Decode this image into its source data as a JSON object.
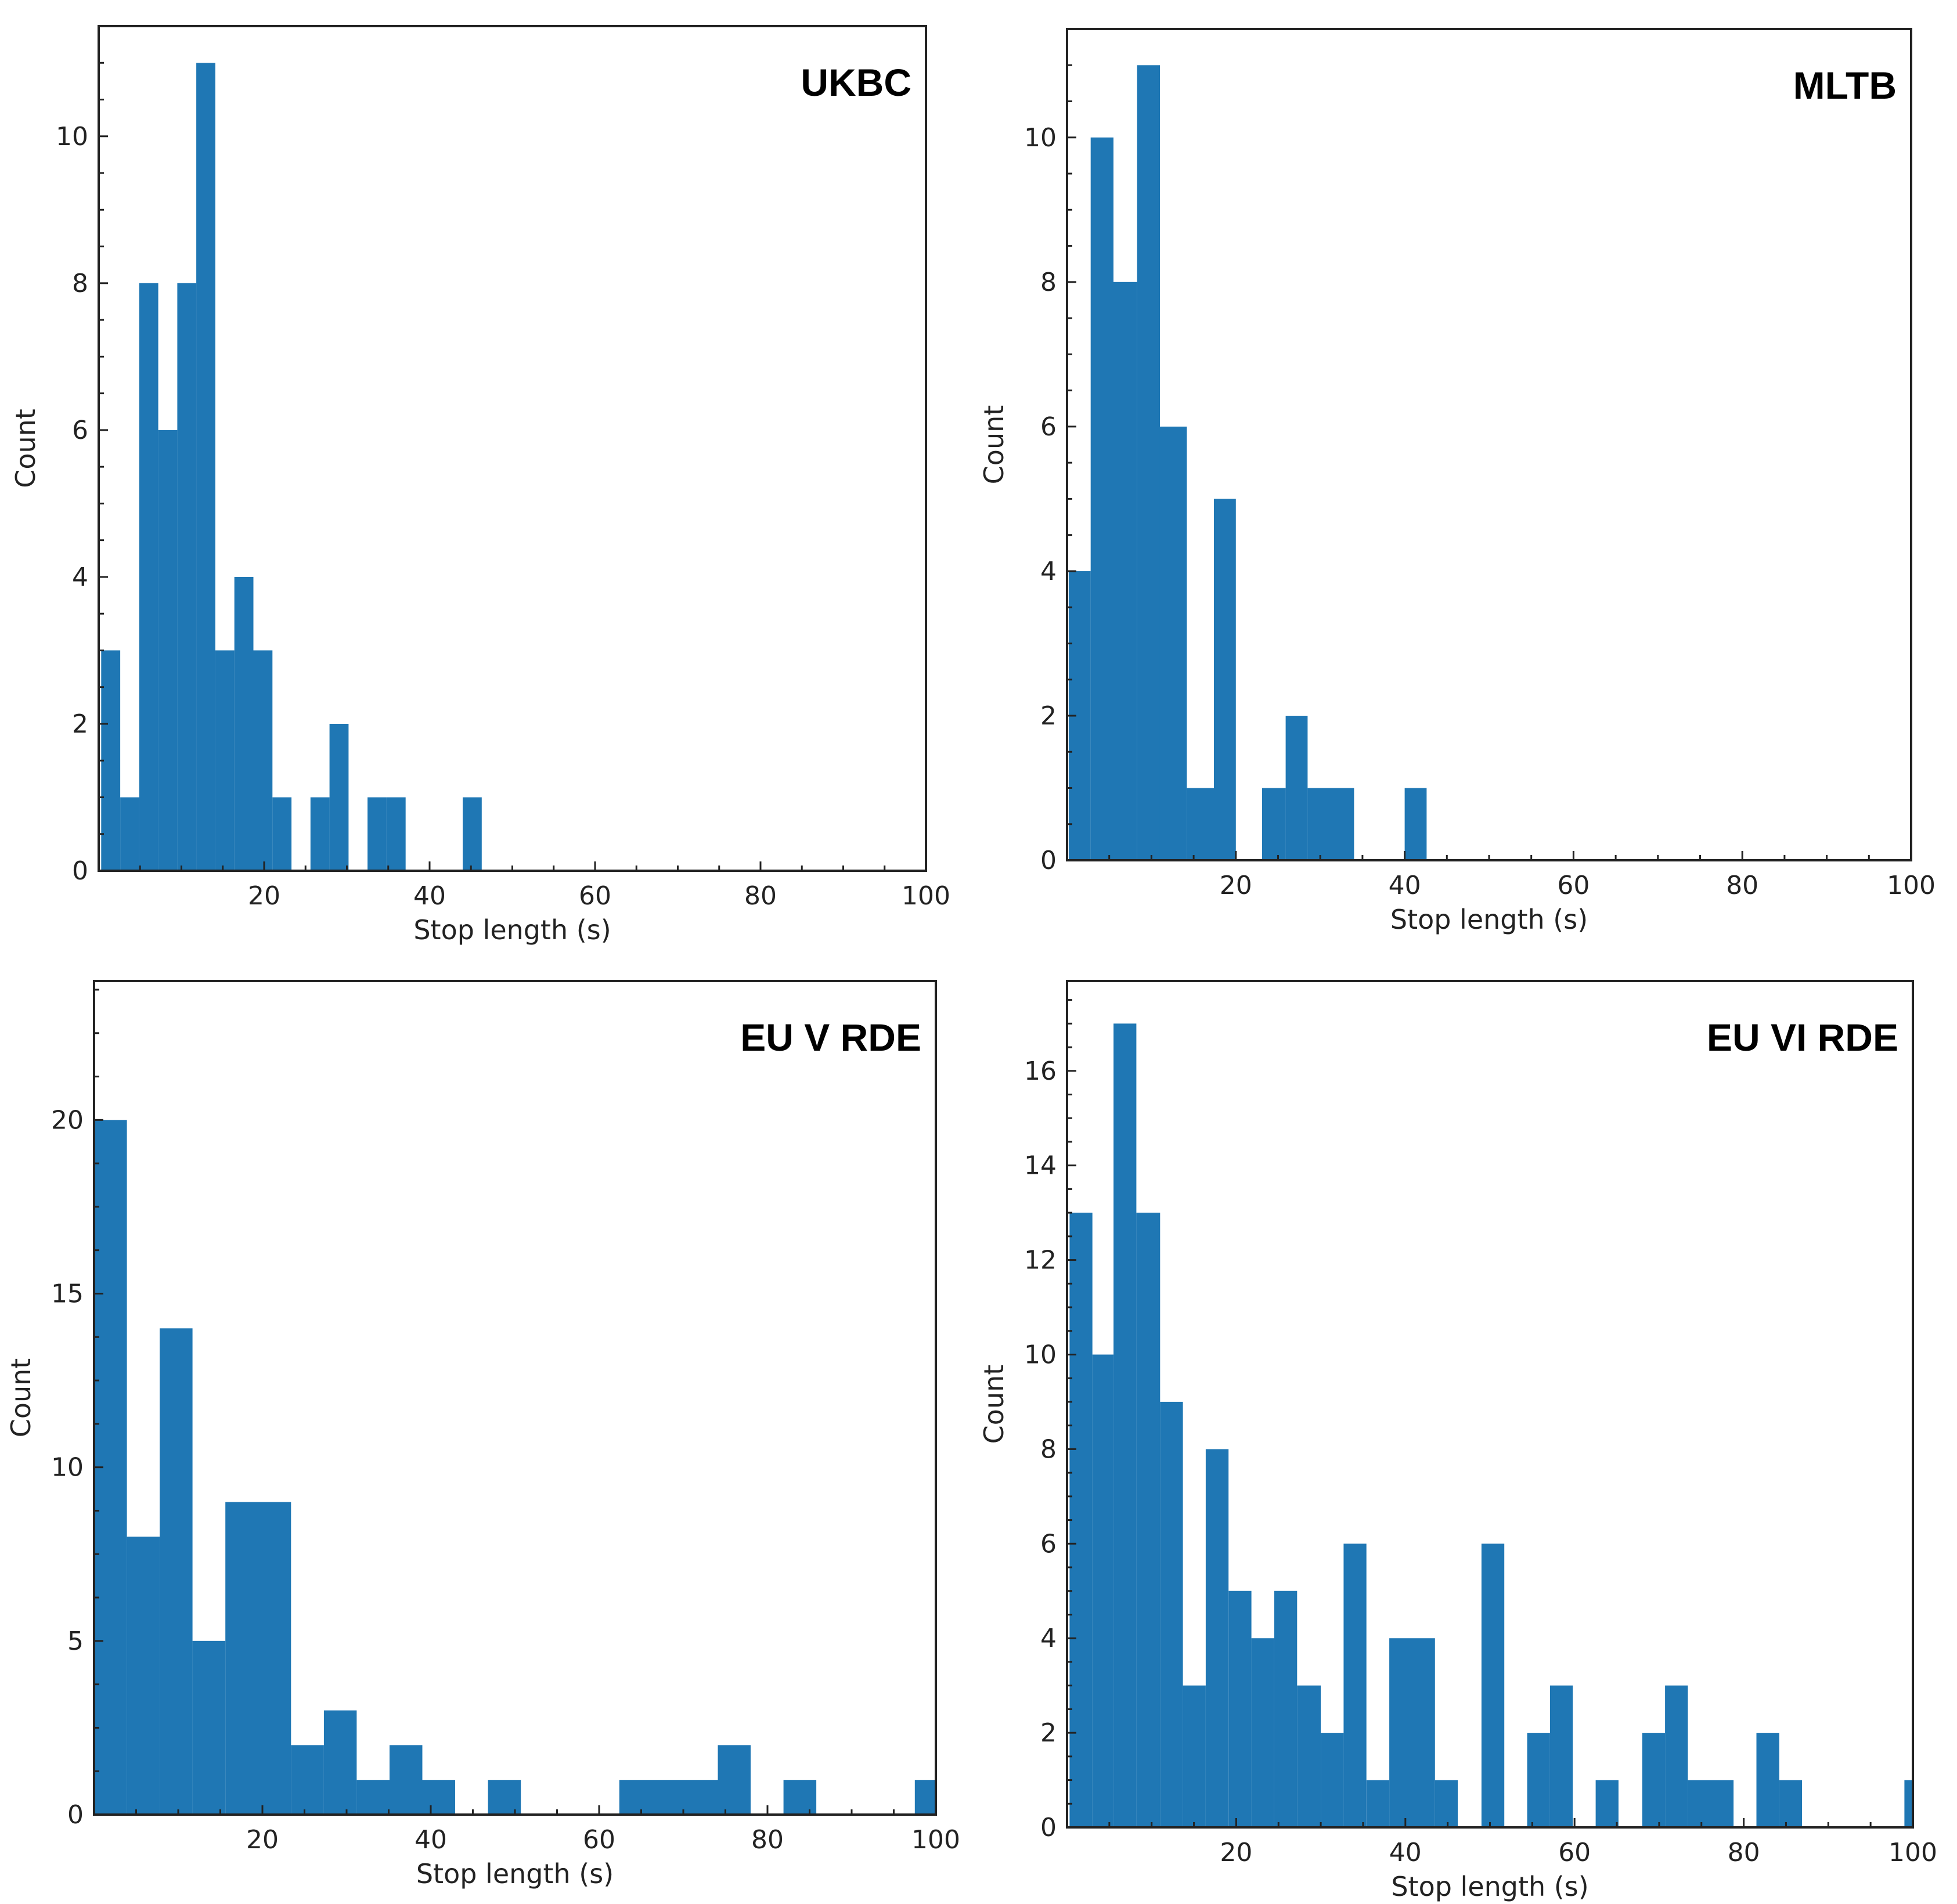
{
  "chart_data": [
    {
      "type": "bar",
      "title": "UKBC",
      "xlabel": "Stop length (s)",
      "ylabel": "Count",
      "xlim": [
        0,
        100
      ],
      "ylim": [
        0,
        11.5
      ],
      "xticks": [
        20,
        40,
        60,
        80,
        100
      ],
      "yticks": [
        0,
        2,
        4,
        6,
        8,
        10
      ],
      "bar_color": "#1f77b4",
      "bins": [
        {
          "x0": 0.3,
          "x1": 2.6,
          "count": 3
        },
        {
          "x0": 2.6,
          "x1": 4.9,
          "count": 1
        },
        {
          "x0": 4.9,
          "x1": 7.2,
          "count": 8
        },
        {
          "x0": 7.2,
          "x1": 9.5,
          "count": 6
        },
        {
          "x0": 9.5,
          "x1": 11.8,
          "count": 8
        },
        {
          "x0": 11.8,
          "x1": 14.1,
          "count": 11
        },
        {
          "x0": 14.1,
          "x1": 16.4,
          "count": 3
        },
        {
          "x0": 16.4,
          "x1": 18.7,
          "count": 4
        },
        {
          "x0": 18.7,
          "x1": 21.0,
          "count": 3
        },
        {
          "x0": 21.0,
          "x1": 23.3,
          "count": 1
        },
        {
          "x0": 25.6,
          "x1": 27.9,
          "count": 1
        },
        {
          "x0": 27.9,
          "x1": 30.2,
          "count": 2
        },
        {
          "x0": 32.5,
          "x1": 34.8,
          "count": 1
        },
        {
          "x0": 34.8,
          "x1": 37.1,
          "count": 1
        },
        {
          "x0": 44.0,
          "x1": 46.3,
          "count": 1
        }
      ]
    },
    {
      "type": "bar",
      "title": "MLTB",
      "xlabel": "Stop length (s)",
      "ylabel": "Count",
      "xlim": [
        0,
        100
      ],
      "ylim": [
        0,
        11.5
      ],
      "xticks": [
        20,
        40,
        60,
        80,
        100
      ],
      "yticks": [
        0,
        2,
        4,
        6,
        8,
        10
      ],
      "bar_color": "#1f77b4",
      "bins": [
        {
          "x0": 0.2,
          "x1": 2.8,
          "count": 4
        },
        {
          "x0": 2.8,
          "x1": 5.5,
          "count": 10
        },
        {
          "x0": 5.5,
          "x1": 8.3,
          "count": 8
        },
        {
          "x0": 8.3,
          "x1": 11.0,
          "count": 11
        },
        {
          "x0": 11.0,
          "x1": 14.2,
          "count": 6
        },
        {
          "x0": 14.2,
          "x1": 17.4,
          "count": 1
        },
        {
          "x0": 17.4,
          "x1": 20.0,
          "count": 5
        },
        {
          "x0": 23.1,
          "x1": 25.9,
          "count": 1
        },
        {
          "x0": 25.9,
          "x1": 28.5,
          "count": 2
        },
        {
          "x0": 28.5,
          "x1": 34.0,
          "count": 1
        },
        {
          "x0": 40.0,
          "x1": 42.6,
          "count": 1
        }
      ]
    },
    {
      "type": "bar",
      "title": "EU V RDE",
      "xlabel": "Stop length (s)",
      "ylabel": "Count",
      "xlim": [
        0,
        100
      ],
      "ylim": [
        0,
        24
      ],
      "xticks": [
        20,
        40,
        60,
        80,
        100
      ],
      "yticks": [
        0,
        5,
        10,
        15,
        20
      ],
      "bar_color": "#1f77b4",
      "bins": [
        {
          "x0": 0.0,
          "x1": 3.9,
          "count": 20
        },
        {
          "x0": 3.9,
          "x1": 7.8,
          "count": 8
        },
        {
          "x0": 7.8,
          "x1": 11.7,
          "count": 14
        },
        {
          "x0": 11.7,
          "x1": 15.6,
          "count": 5
        },
        {
          "x0": 15.6,
          "x1": 23.4,
          "count": 9
        },
        {
          "x0": 23.4,
          "x1": 27.3,
          "count": 2
        },
        {
          "x0": 27.3,
          "x1": 31.2,
          "count": 3
        },
        {
          "x0": 31.2,
          "x1": 35.1,
          "count": 1
        },
        {
          "x0": 35.1,
          "x1": 39.0,
          "count": 2
        },
        {
          "x0": 39.0,
          "x1": 42.9,
          "count": 1
        },
        {
          "x0": 46.8,
          "x1": 50.7,
          "count": 1
        },
        {
          "x0": 62.4,
          "x1": 74.1,
          "count": 1
        },
        {
          "x0": 74.1,
          "x1": 78.0,
          "count": 2
        },
        {
          "x0": 81.9,
          "x1": 85.8,
          "count": 1
        },
        {
          "x0": 97.5,
          "x1": 100.0,
          "count": 1
        }
      ]
    },
    {
      "type": "bar",
      "title": "EU VI RDE",
      "xlabel": "Stop length (s)",
      "ylabel": "Count",
      "xlim": [
        0,
        100
      ],
      "ylim": [
        0,
        17.9
      ],
      "xticks": [
        20,
        40,
        60,
        80,
        100
      ],
      "yticks": [
        0,
        2,
        4,
        6,
        8,
        10,
        12,
        14,
        16
      ],
      "bar_color": "#1f77b4",
      "bins": [
        {
          "x0": 0.3,
          "x1": 3.0,
          "count": 13
        },
        {
          "x0": 3.0,
          "x1": 5.5,
          "count": 10
        },
        {
          "x0": 5.5,
          "x1": 8.2,
          "count": 17
        },
        {
          "x0": 8.2,
          "x1": 11.0,
          "count": 13
        },
        {
          "x0": 11.0,
          "x1": 13.7,
          "count": 9
        },
        {
          "x0": 13.7,
          "x1": 16.4,
          "count": 3
        },
        {
          "x0": 16.4,
          "x1": 19.1,
          "count": 8
        },
        {
          "x0": 19.1,
          "x1": 21.8,
          "count": 5
        },
        {
          "x0": 21.8,
          "x1": 24.5,
          "count": 4
        },
        {
          "x0": 24.5,
          "x1": 27.2,
          "count": 5
        },
        {
          "x0": 27.2,
          "x1": 30.0,
          "count": 3
        },
        {
          "x0": 30.0,
          "x1": 32.7,
          "count": 2
        },
        {
          "x0": 32.7,
          "x1": 35.4,
          "count": 6
        },
        {
          "x0": 35.4,
          "x1": 38.1,
          "count": 1
        },
        {
          "x0": 38.1,
          "x1": 43.5,
          "count": 4
        },
        {
          "x0": 43.5,
          "x1": 46.2,
          "count": 1
        },
        {
          "x0": 49.0,
          "x1": 51.7,
          "count": 6
        },
        {
          "x0": 54.4,
          "x1": 57.1,
          "count": 2
        },
        {
          "x0": 57.1,
          "x1": 59.8,
          "count": 3
        },
        {
          "x0": 62.5,
          "x1": 65.2,
          "count": 1
        },
        {
          "x0": 68.0,
          "x1": 70.7,
          "count": 2
        },
        {
          "x0": 70.7,
          "x1": 73.4,
          "count": 3
        },
        {
          "x0": 73.4,
          "x1": 78.8,
          "count": 1
        },
        {
          "x0": 81.5,
          "x1": 84.2,
          "count": 2
        },
        {
          "x0": 84.2,
          "x1": 86.9,
          "count": 1
        },
        {
          "x0": 99.0,
          "x1": 100.0,
          "count": 1
        }
      ]
    }
  ]
}
